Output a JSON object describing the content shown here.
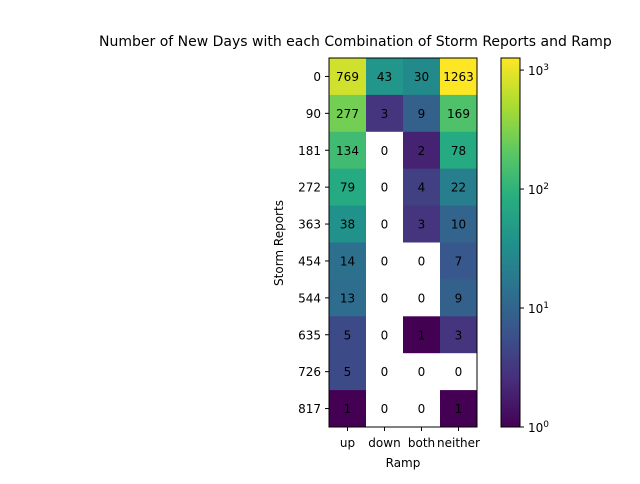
{
  "chart_data": {
    "type": "heatmap",
    "title": "Number of New Days with each Combination of Storm Reports and Ramp",
    "xlabel": "Ramp",
    "ylabel": "Storm Reports",
    "x_categories": [
      "up",
      "down",
      "both",
      "neither"
    ],
    "y_categories": [
      "0",
      "90",
      "181",
      "272",
      "363",
      "454",
      "544",
      "635",
      "726",
      "817"
    ],
    "values": [
      [
        769,
        43,
        30,
        1263
      ],
      [
        277,
        3,
        9,
        169
      ],
      [
        134,
        0,
        2,
        78
      ],
      [
        79,
        0,
        4,
        22
      ],
      [
        38,
        0,
        3,
        10
      ],
      [
        14,
        0,
        0,
        7
      ],
      [
        13,
        0,
        0,
        9
      ],
      [
        5,
        0,
        1,
        3
      ],
      [
        5,
        0,
        0,
        0
      ],
      [
        1,
        0,
        0,
        1
      ]
    ],
    "color_scale": "log",
    "colormap": "viridis",
    "zero_color": "#ffffff",
    "colorbar": {
      "range": [
        1,
        1263
      ],
      "ticks": [
        {
          "value": 1,
          "base": "10",
          "exp": "0"
        },
        {
          "value": 10,
          "base": "10",
          "exp": "1"
        },
        {
          "value": 100,
          "base": "10",
          "exp": "2"
        },
        {
          "value": 1000,
          "base": "10",
          "exp": "3"
        }
      ]
    },
    "grid": false
  }
}
